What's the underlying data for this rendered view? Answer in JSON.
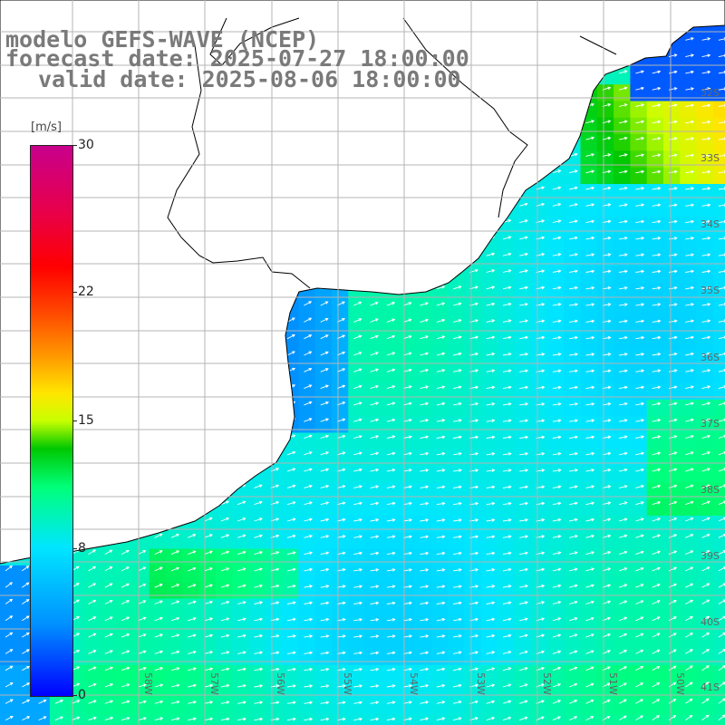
{
  "header": {
    "model": "modelo GEFS-WAVE (NCEP)",
    "forecast_date": "forecast date: 2025-07-27 18:00:00",
    "valid_date": "valid date: 2025-08-06 18:00:00"
  },
  "colorbar": {
    "units": "[m/s]",
    "min": 0,
    "max": 30,
    "labels": [
      {
        "value": 30,
        "text": "30"
      },
      {
        "value": 22,
        "text": "22"
      },
      {
        "value": 15,
        "text": "15"
      },
      {
        "value": 8,
        "text": "8"
      },
      {
        "value": 0,
        "text": "0"
      }
    ]
  },
  "map": {
    "lat_labels": [
      "32S",
      "33S",
      "34S",
      "35S",
      "36S",
      "37S",
      "38S",
      "39S",
      "40S",
      "41S"
    ],
    "lon_labels": [
      "58W",
      "57W",
      "56W",
      "55W",
      "54W",
      "53W",
      "52W",
      "51W",
      "50W"
    ],
    "land_color": "#ffffff",
    "grid_color": "#b4b4b4",
    "arrow_color": "#ffffff"
  }
}
